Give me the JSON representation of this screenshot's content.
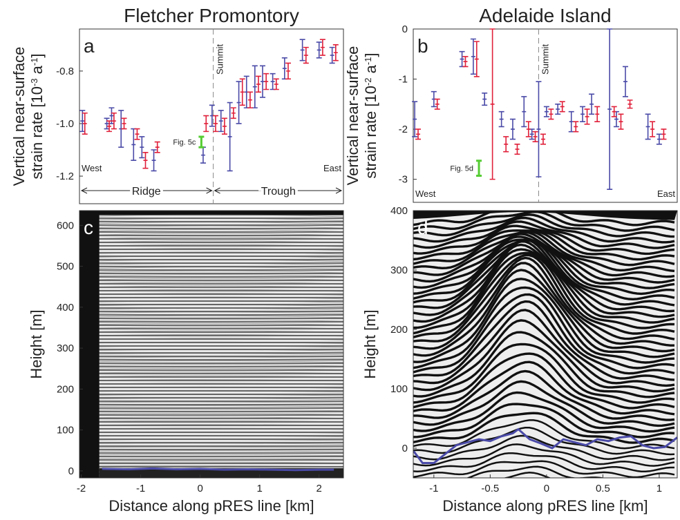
{
  "chart_data": [
    {
      "type": "errorbar",
      "panel": "a",
      "title": "Fletcher Promontory",
      "y_label": "Vertical near-surface",
      "y_label_unit": [
        "strain rate [10",
        "-3",
        " a",
        "-1",
        "]"
      ],
      "xlim": [
        -2.03,
        2.41
      ],
      "ylim": [
        -1.305,
        -0.64
      ],
      "yticks": [
        -0.8,
        {
          "value": -1.0,
          "label": "-1.0"
        },
        -1.2
      ],
      "summit": {
        "label": "Summit",
        "x": 0.22
      },
      "west": "West",
      "east": "East",
      "left_region": "Ridge",
      "right_region": "Trough",
      "highlight": {
        "label": "Fig. 5c",
        "color": "#55cc33",
        "x": 0.02,
        "value": -1.07,
        "error": 0.02
      },
      "series": [
        {
          "color": "#4a4aa8",
          "x": [
            -1.98,
            -1.57,
            -1.49,
            -1.33,
            -1.12,
            -0.98,
            -0.78,
            0.05,
            0.2,
            0.35,
            0.5,
            0.65,
            0.78,
            0.92,
            1.05,
            1.22,
            1.42,
            1.72,
            2.0,
            2.22
          ],
          "values": [
            -0.99,
            -1.0,
            -0.97,
            -1.02,
            -1.08,
            -1.09,
            -1.14,
            -1.12,
            -0.97,
            -0.99,
            -1.05,
            -0.92,
            -0.88,
            -0.86,
            -0.84,
            -0.84,
            -0.79,
            -0.72,
            -0.72,
            -0.74
          ],
          "errors": [
            0.04,
            0.02,
            0.03,
            0.07,
            0.06,
            0.04,
            0.04,
            0.03,
            0.04,
            0.04,
            0.13,
            0.08,
            0.06,
            0.08,
            0.06,
            0.03,
            0.04,
            0.04,
            0.03,
            0.03
          ]
        },
        {
          "color": "#e0203a",
          "x": [
            -1.94,
            -1.53,
            -1.45,
            -1.28,
            -1.06,
            -0.92,
            -0.72,
            0.1,
            0.26,
            0.41,
            0.56,
            0.71,
            0.84,
            0.98,
            1.11,
            1.28,
            1.48,
            1.78,
            2.06,
            2.28
          ],
          "values": [
            -1.0,
            -1.01,
            -0.99,
            -1.0,
            -1.04,
            -1.14,
            -1.09,
            -1.0,
            -1.0,
            -1.01,
            -0.96,
            -0.88,
            -0.91,
            -0.85,
            -0.84,
            -0.85,
            -0.8,
            -0.74,
            -0.71,
            -0.73
          ],
          "errors": [
            0.04,
            0.02,
            0.03,
            0.02,
            0.02,
            0.03,
            0.02,
            0.03,
            0.03,
            0.03,
            0.02,
            0.05,
            0.03,
            0.03,
            0.03,
            0.02,
            0.03,
            0.03,
            0.03,
            0.03
          ]
        }
      ]
    },
    {
      "type": "errorbar",
      "panel": "b",
      "title": "Adelaide Island",
      "y_label": "Vertical near-surface",
      "y_label_unit": [
        "strain rate [10",
        "-2",
        " a",
        "-1",
        "]"
      ],
      "xlim": [
        -1.183,
        1.16
      ],
      "ylim": [
        -3.46,
        0
      ],
      "yticks": [
        0,
        -1,
        -2,
        -3
      ],
      "summit": {
        "label": "Summit",
        "x": -0.07
      },
      "west": "West",
      "east": "East",
      "highlight": {
        "label": "Fig. 5d",
        "color": "#55cc33",
        "x": -0.6,
        "value": -2.78,
        "error": 0.15
      },
      "series": [
        {
          "color": "#4a4aa8",
          "x": [
            -1.17,
            -1.0,
            -0.75,
            -0.65,
            -0.55,
            -0.4,
            -0.3,
            -0.2,
            -0.13,
            -0.07,
            0.0,
            0.1,
            0.22,
            0.32,
            0.4,
            0.56,
            0.62,
            0.7,
            0.9,
            1.0
          ],
          "values": [
            -1.8,
            -1.4,
            -0.6,
            -0.55,
            -1.4,
            -1.8,
            -2.0,
            -1.65,
            -2.1,
            -2.0,
            -1.65,
            -1.6,
            -1.85,
            -1.7,
            -1.5,
            -1.6,
            -1.8,
            -1.05,
            -1.95,
            -2.2
          ],
          "errors": [
            0.35,
            0.15,
            0.15,
            0.35,
            0.12,
            0.15,
            0.2,
            0.3,
            0.1,
            0.95,
            0.1,
            0.1,
            0.2,
            0.15,
            0.2,
            1.6,
            0.15,
            0.3,
            0.25,
            0.1
          ]
        },
        {
          "color": "#e0203a",
          "x": [
            -1.14,
            -0.97,
            -0.72,
            -0.62,
            -0.48,
            -0.36,
            -0.26,
            -0.16,
            -0.1,
            -0.03,
            0.04,
            0.14,
            0.26,
            0.36,
            0.45,
            0.6,
            0.66,
            0.74,
            0.94,
            1.04
          ],
          "values": [
            -2.1,
            -1.5,
            -0.65,
            -0.6,
            -1.5,
            -2.3,
            -2.4,
            -2.0,
            -2.15,
            -2.2,
            -1.7,
            -1.55,
            -1.95,
            -1.75,
            -1.7,
            -1.65,
            -1.85,
            -1.5,
            -2.0,
            -2.1
          ],
          "errors": [
            0.1,
            0.1,
            0.1,
            0.35,
            1.5,
            0.15,
            0.1,
            0.15,
            0.1,
            0.1,
            0.1,
            0.1,
            0.1,
            0.15,
            0.15,
            0.1,
            0.15,
            0.08,
            0.15,
            0.1
          ]
        }
      ]
    },
    {
      "type": "radargram",
      "panel": "c",
      "y_label": "Height [m]",
      "x_label": "Distance along pRES line [km]",
      "xlim": [
        -2.03,
        2.41
      ],
      "ylim": [
        -17,
        636
      ],
      "xticks": [
        -2,
        -1,
        0,
        1,
        2
      ],
      "yticks": [
        0,
        100,
        200,
        300,
        400,
        500,
        600
      ],
      "series": [
        {
          "color": "#4a4aa8",
          "x": [
            -1.65,
            -1.2,
            -0.8,
            -0.4,
            0.0,
            0.4,
            0.8,
            1.2,
            1.6,
            2.0,
            2.25
          ],
          "values": [
            5,
            4,
            6,
            4,
            5,
            3,
            4,
            3,
            2,
            3,
            3
          ]
        }
      ]
    },
    {
      "type": "radargram",
      "panel": "d",
      "y_label": "Height [m]",
      "x_label": "Distance along pRES line [km]",
      "xlim": [
        -1.183,
        1.16
      ],
      "ylim": [
        -50,
        400
      ],
      "xticks": [
        -1,
        -0.5,
        0,
        0.5,
        1
      ],
      "yticks": [
        0,
        100,
        200,
        300,
        400
      ],
      "series": [
        {
          "color": "#4a4aa8",
          "x": [
            -1.18,
            -1.1,
            -1.0,
            -0.9,
            -0.8,
            -0.7,
            -0.6,
            -0.5,
            -0.4,
            -0.3,
            -0.25,
            -0.15,
            -0.05,
            0.05,
            0.15,
            0.25,
            0.35,
            0.45,
            0.55,
            0.65,
            0.75,
            0.85,
            0.95,
            1.05,
            1.16
          ],
          "values": [
            -5,
            -25,
            -25,
            -10,
            5,
            10,
            15,
            12,
            20,
            25,
            32,
            15,
            8,
            0,
            15,
            10,
            5,
            15,
            12,
            18,
            20,
            5,
            0,
            2,
            18
          ]
        }
      ]
    }
  ]
}
